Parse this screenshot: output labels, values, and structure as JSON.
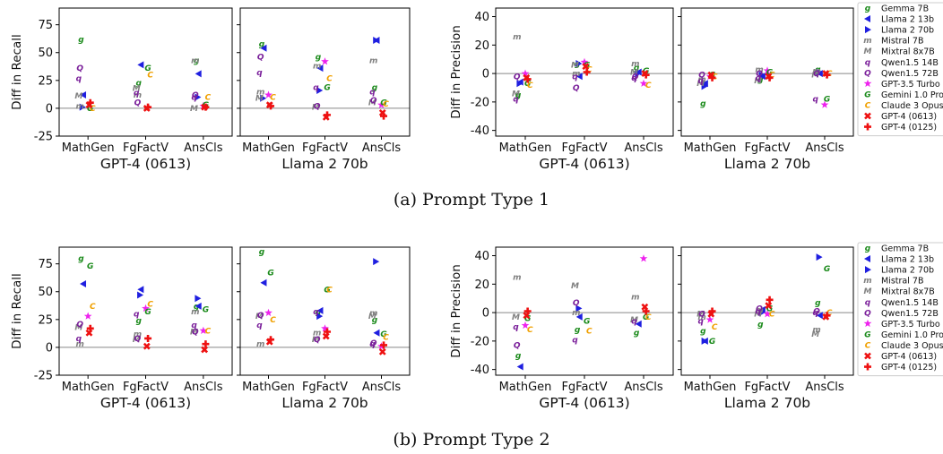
{
  "figure_captions": [
    "(a) Prompt Type 1",
    "(b) Prompt Type 2"
  ],
  "models": [
    {
      "name": "Gemma 7B",
      "marker": "g",
      "color": "#1a8a1a"
    },
    {
      "name": "Llama 2 13b",
      "marker": "tri-left",
      "color": "#1f1fe0"
    },
    {
      "name": "Llama 2 70b",
      "marker": "tri-right",
      "color": "#1f1fe0"
    },
    {
      "name": "Mistral 7B",
      "marker": "m",
      "color": "#808080"
    },
    {
      "name": "Mixtral 8x7B",
      "marker": "M",
      "color": "#808080"
    },
    {
      "name": "Qwen1.5 14B",
      "marker": "q",
      "color": "#7a1f9a"
    },
    {
      "name": "Qwen1.5 72B",
      "marker": "Q",
      "color": "#7a1f9a"
    },
    {
      "name": "GPT-3.5 Turbo",
      "marker": "star",
      "color": "#ee22ee"
    },
    {
      "name": "Gemini 1.0 Pro",
      "marker": "G",
      "color": "#1a8a1a"
    },
    {
      "name": "Claude 3 Opus",
      "marker": "C",
      "color": "#f0a000"
    },
    {
      "name": "GPT-4 (0613)",
      "marker": "x",
      "color": "#ee1111"
    },
    {
      "name": "GPT-4 (0125)",
      "marker": "plus",
      "color": "#ee1111"
    }
  ],
  "chart_data": [
    {
      "type": "scatter",
      "row": 0,
      "col": 0,
      "ylabel": "Diff in Recall",
      "xlabel": "GPT-4 (0613)",
      "categories": [
        "MathGen",
        "FgFactV",
        "AnsCls"
      ],
      "ylim": [
        -25,
        90
      ],
      "yticks": [
        -25,
        0,
        25,
        50,
        75
      ],
      "points": [
        [
          62,
          12,
          1,
          2,
          11,
          27,
          36,
          null,
          0,
          0,
          3,
          5
        ],
        [
          23,
          39,
          null,
          12,
          18,
          14,
          5,
          null,
          36,
          30,
          0,
          1
        ],
        [
          43,
          31,
          10,
          43,
          0,
          10,
          12,
          2,
          3,
          10,
          1,
          1
        ]
      ]
    },
    {
      "type": "scatter",
      "row": 0,
      "col": 1,
      "ylabel": "",
      "xlabel": "Llama 2 70b",
      "categories": [
        "MathGen",
        "FgFactV",
        "AnsCls"
      ],
      "ylim": [
        -25,
        90
      ],
      "yticks": [
        -25,
        0,
        25,
        50,
        75
      ],
      "points": [
        [
          58,
          54,
          9,
          15,
          9,
          32,
          46,
          12,
          null,
          10,
          3,
          2
        ],
        [
          46,
          36,
          16,
          38,
          1,
          19,
          2,
          42,
          19,
          27,
          -8,
          -6
        ],
        [
          19,
          61,
          61,
          43,
          5,
          15,
          7,
          3,
          5,
          4,
          -4,
          -7
        ]
      ]
    },
    {
      "type": "scatter",
      "row": 0,
      "col": 2,
      "ylabel": "Diff in Precision",
      "xlabel": "GPT-4 (0613)",
      "categories": [
        "MathGen",
        "FgFactV",
        "AnsCls"
      ],
      "ylim": [
        -44,
        46
      ],
      "yticks": [
        -40,
        -20,
        0,
        20,
        40
      ],
      "points": [
        [
          -15,
          -6,
          -7,
          26,
          -14,
          -18,
          -2,
          0,
          -7,
          -8,
          -3,
          -4
        ],
        [
          7,
          -2,
          7,
          0,
          6,
          -2,
          -10,
          8,
          6,
          3,
          5,
          1
        ],
        [
          4,
          1,
          0,
          7,
          1,
          -3,
          -2,
          -7,
          2,
          -8,
          0,
          -1
        ]
      ]
    },
    {
      "type": "scatter",
      "row": 0,
      "col": 3,
      "ylabel": "",
      "xlabel": "Llama 2 70b",
      "categories": [
        "MathGen",
        "FgFactV",
        "AnsCls"
      ],
      "ylim": [
        -44,
        46
      ],
      "yticks": [
        -40,
        -20,
        0,
        20,
        40
      ],
      "points": [
        [
          -21,
          -7,
          -9,
          -4,
          -7,
          -5,
          -1,
          -2,
          -1,
          -2,
          -1,
          -3
        ],
        [
          -4,
          -2,
          -1,
          3,
          -5,
          -3,
          0,
          2,
          1,
          -1,
          -2,
          -3
        ],
        [
          3,
          0,
          1,
          2,
          -1,
          -18,
          0,
          -22,
          -18,
          0,
          0,
          -1
        ]
      ]
    },
    {
      "type": "scatter",
      "row": 1,
      "col": 0,
      "ylabel": "Diff in Recall",
      "xlabel": "GPT-4 (0613)",
      "categories": [
        "MathGen",
        "FgFactV",
        "AnsCls"
      ],
      "ylim": [
        -25,
        90
      ],
      "yticks": [
        -25,
        0,
        25,
        50,
        75
      ],
      "points": [
        [
          80,
          57,
          null,
          3,
          18,
          8,
          21,
          28,
          73,
          37,
          13,
          17
        ],
        [
          24,
          52,
          47,
          12,
          7,
          30,
          8,
          35,
          32,
          39,
          1,
          8
        ],
        [
          37,
          37,
          44,
          32,
          14,
          20,
          14,
          15,
          34,
          15,
          -2,
          3
        ]
      ]
    },
    {
      "type": "scatter",
      "row": 1,
      "col": 1,
      "ylabel": "",
      "xlabel": "Llama 2 70b",
      "categories": [
        "MathGen",
        "FgFactV",
        "AnsCls"
      ],
      "ylim": [
        -25,
        90
      ],
      "yticks": [
        -25,
        0,
        25,
        50,
        75
      ],
      "points": [
        [
          86,
          58,
          null,
          3,
          28,
          20,
          29,
          31,
          67,
          25,
          5,
          7
        ],
        [
          32,
          33,
          28,
          13,
          7,
          32,
          7,
          17,
          52,
          52,
          10,
          14
        ],
        [
          25,
          13,
          77,
          31,
          28,
          3,
          4,
          1,
          12,
          9,
          -4,
          2
        ]
      ]
    },
    {
      "type": "scatter",
      "row": 1,
      "col": 2,
      "ylabel": "Diff in Precision",
      "xlabel": "GPT-4 (0613)",
      "categories": [
        "MathGen",
        "FgFactV",
        "AnsCls"
      ],
      "ylim": [
        -44,
        46
      ],
      "yticks": [
        -40,
        -20,
        0,
        20,
        40
      ],
      "points": [
        [
          -30,
          -38,
          null,
          25,
          -3,
          -10,
          -23,
          -9,
          -4,
          -12,
          -2,
          1
        ],
        [
          -12,
          -3,
          3,
          0,
          19,
          -19,
          7,
          null,
          -6,
          -13,
          null,
          null
        ],
        [
          -14,
          -8,
          null,
          11,
          -5,
          -6,
          null,
          38,
          -3,
          -3,
          4,
          1
        ]
      ]
    },
    {
      "type": "scatter",
      "row": 1,
      "col": 3,
      "ylabel": "",
      "xlabel": "Llama 2 70b",
      "categories": [
        "MathGen",
        "FgFactV",
        "AnsCls"
      ],
      "ylim": [
        -44,
        46
      ],
      "yticks": [
        -40,
        -20,
        0,
        20,
        40
      ],
      "points": [
        [
          -13,
          -20,
          -20,
          -3,
          -1,
          -6,
          -1,
          -5,
          -20,
          -10,
          -1,
          1
        ],
        [
          -8,
          2,
          0,
          2,
          -1,
          1,
          3,
          -1,
          3,
          -1,
          5,
          9
        ],
        [
          7,
          -2,
          39,
          -12,
          -15,
          0,
          1,
          null,
          31,
          0,
          -3,
          -2
        ]
      ]
    }
  ]
}
